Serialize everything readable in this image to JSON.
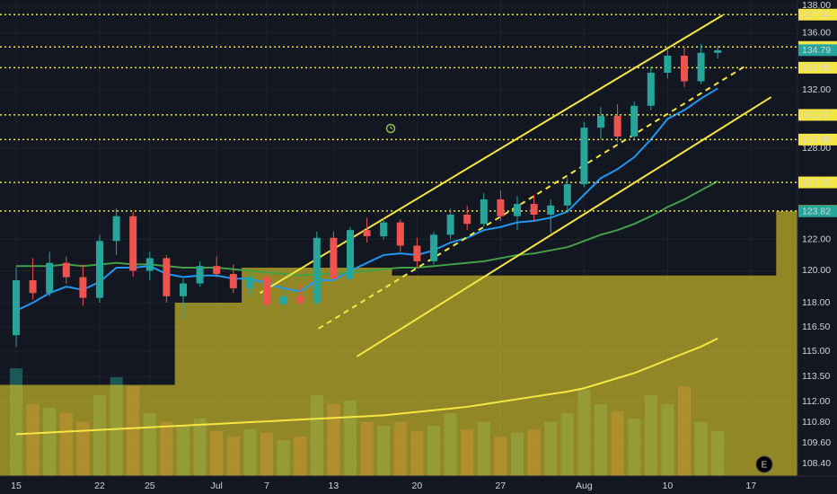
{
  "chart_data": {
    "type": "candlestick",
    "log_scale": true,
    "grid": true,
    "categories": [
      "15",
      null,
      null,
      null,
      null,
      "22",
      null,
      null,
      "25",
      null,
      null,
      null,
      "Jul",
      null,
      null,
      "7",
      null,
      null,
      null,
      "13",
      null,
      null,
      null,
      null,
      "20",
      null,
      null,
      null,
      null,
      "27",
      null,
      null,
      null,
      null,
      "Aug",
      null,
      null,
      null,
      null,
      "10",
      null,
      null,
      null,
      null,
      "17",
      null,
      null
    ],
    "open": [
      116,
      119.4,
      118.6,
      120.5,
      119.6,
      118.3,
      121.9,
      123.5,
      120.0,
      120.8,
      118.4,
      119.2,
      120.3,
      119.8,
      118.9,
      119.6,
      117.9,
      118.4,
      118.0,
      122.1,
      119.5,
      122.6,
      122.2,
      123.1,
      121.6,
      120.6,
      122.3,
      123.6,
      123.0,
      124.6,
      123.5,
      124.3,
      123.6,
      124.2,
      125.6,
      129.4,
      130.2,
      128.8,
      130.9,
      133.2,
      134.4,
      132.6,
      134.6,
      null,
      null,
      null,
      null
    ],
    "high": [
      120.2,
      120.8,
      121.2,
      120.9,
      120.4,
      122.3,
      124.0,
      123.8,
      121.2,
      121.0,
      119.5,
      120.6,
      120.9,
      120.4,
      119.8,
      119.8,
      118.8,
      119.2,
      122.5,
      122.5,
      122.8,
      123.4,
      123.4,
      123.3,
      122.1,
      122.5,
      124.0,
      124.2,
      125.0,
      125.2,
      124.8,
      124.9,
      124.6,
      126.0,
      129.8,
      130.8,
      131.0,
      131.2,
      133.6,
      134.8,
      135.0,
      135.2,
      135.1,
      null,
      null,
      null,
      null
    ],
    "low": [
      115.3,
      118.2,
      118.4,
      119.2,
      117.8,
      118.0,
      121.0,
      119.6,
      119.4,
      118.0,
      117.0,
      119.0,
      119.6,
      118.6,
      118.4,
      117.6,
      117.3,
      117.8,
      117.8,
      119.0,
      119.3,
      121.8,
      122.0,
      121.2,
      120.2,
      120.4,
      122.0,
      122.6,
      122.8,
      123.2,
      122.6,
      123.2,
      122.4,
      123.8,
      125.4,
      128.6,
      128.4,
      128.6,
      130.6,
      132.8,
      132.2,
      132.4,
      134.2,
      null,
      null,
      null,
      null
    ],
    "close": [
      119.4,
      118.6,
      120.5,
      119.6,
      118.3,
      121.9,
      123.5,
      120.0,
      120.8,
      118.4,
      119.2,
      120.3,
      119.8,
      118.9,
      119.6,
      117.9,
      118.4,
      118.0,
      122.1,
      119.5,
      122.6,
      122.2,
      123.1,
      121.6,
      120.6,
      122.3,
      123.6,
      123.0,
      124.6,
      123.5,
      124.3,
      123.6,
      124.2,
      125.6,
      129.4,
      130.2,
      128.8,
      130.9,
      133.2,
      134.4,
      132.6,
      134.6,
      134.79,
      null,
      null,
      null,
      null
    ],
    "up_color": "#26a69a",
    "down_color": "#ef5350",
    "volume": [
      60,
      40,
      38,
      35,
      30,
      45,
      55,
      50,
      35,
      30,
      28,
      32,
      25,
      22,
      26,
      24,
      20,
      22,
      45,
      40,
      42,
      30,
      28,
      30,
      25,
      28,
      35,
      26,
      30,
      22,
      24,
      26,
      30,
      35,
      48,
      40,
      36,
      32,
      45,
      40,
      50,
      30,
      25,
      null,
      null,
      null,
      null
    ],
    "volume_lim": [
      0,
      100
    ],
    "overlays": [
      {
        "color": "#2196f3",
        "values": [
          117.5,
          118,
          118.6,
          119,
          118.8,
          119.3,
          120.2,
          120.2,
          120.3,
          119.8,
          119.6,
          119.7,
          119.7,
          119.5,
          119.5,
          119.2,
          118.9,
          118.7,
          119.4,
          119.4,
          120,
          120.5,
          121,
          121.1,
          121,
          121.3,
          121.8,
          122.1,
          122.6,
          122.8,
          123.1,
          123.2,
          123.4,
          123.8,
          124.9,
          126,
          126.6,
          127.4,
          128.6,
          130,
          130.6,
          131.4,
          132.1,
          null,
          null,
          null,
          null
        ]
      },
      {
        "color": "#43a047",
        "values": [
          120.3,
          120.3,
          120.3,
          120.4,
          120.3,
          120.4,
          120.5,
          120.4,
          120.4,
          120.3,
          120.2,
          120.2,
          120.2,
          120.1,
          120,
          119.9,
          119.8,
          119.7,
          119.8,
          119.8,
          119.9,
          120,
          120.1,
          120.2,
          120.2,
          120.3,
          120.4,
          120.5,
          120.6,
          120.8,
          121,
          121.1,
          121.3,
          121.5,
          121.9,
          122.3,
          122.6,
          123,
          123.5,
          124.1,
          124.6,
          125.2,
          125.8,
          null,
          null,
          null,
          null
        ]
      },
      {
        "color": "#f5e642",
        "values": [
          110.1,
          110.15,
          110.2,
          110.25,
          110.3,
          110.35,
          110.4,
          110.45,
          110.5,
          110.55,
          110.6,
          110.65,
          110.7,
          110.75,
          110.8,
          110.85,
          110.9,
          110.95,
          111,
          111.05,
          111.1,
          111.15,
          111.2,
          111.3,
          111.4,
          111.5,
          111.6,
          111.7,
          111.85,
          112,
          112.15,
          112.3,
          112.45,
          112.6,
          112.8,
          113.1,
          113.4,
          113.7,
          114.1,
          114.5,
          114.9,
          115.3,
          115.8,
          null,
          null,
          null,
          null
        ]
      }
    ],
    "area": {
      "color": "#c8b82a",
      "values": [
        113,
        113,
        113,
        113,
        113,
        113,
        113,
        113,
        113,
        113,
        118,
        118,
        118,
        118,
        120.2,
        120.2,
        120.2,
        120.2,
        120.2,
        120.2,
        120.2,
        120.2,
        120.2,
        119.7,
        119.7,
        119.7,
        119.7,
        119.7,
        119.7,
        119.7,
        119.7,
        119.7,
        119.7,
        119.7,
        119.7,
        119.7,
        119.7,
        119.7,
        119.7,
        119.7,
        119.7,
        119.7,
        119.7,
        119.7,
        119.7,
        119.7,
        123.82
      ]
    },
    "ylim": [
      107.7,
      138.4
    ],
    "yticks": [
      {
        "value": 138,
        "label": "138.00"
      },
      {
        "value": 136,
        "label": "136.00"
      },
      {
        "value": 132,
        "label": "132.00"
      },
      {
        "value": 128,
        "label": "128.00"
      },
      {
        "value": 122,
        "label": "122.00"
      },
      {
        "value": 120,
        "label": "120.00"
      },
      {
        "value": 118,
        "label": "118.00"
      },
      {
        "value": 116.5,
        "label": "116.50"
      },
      {
        "value": 115,
        "label": "115.00"
      },
      {
        "value": 113.5,
        "label": "113.50"
      },
      {
        "value": 112,
        "label": "112.00"
      },
      {
        "value": 110.8,
        "label": "110.80"
      },
      {
        "value": 109.6,
        "label": "109.60"
      },
      {
        "value": 108.4,
        "label": "108.40"
      }
    ],
    "levels": [
      137.34,
      135.02,
      133.55,
      130.27,
      128.59,
      125.72,
      123.84
    ],
    "level_color": "#f5e642",
    "trendlines": [
      {
        "x": [
          14.6,
          42.3
        ],
        "y": [
          118.6,
          137.3
        ],
        "dashed": false
      },
      {
        "x": [
          18.1,
          43.7
        ],
        "y": [
          116.4,
          133.7
        ],
        "dashed": true
      },
      {
        "x": [
          20.4,
          45.2
        ],
        "y": [
          114.7,
          131.5
        ],
        "dashed": false
      }
    ],
    "earnings_marker": "E"
  }
}
